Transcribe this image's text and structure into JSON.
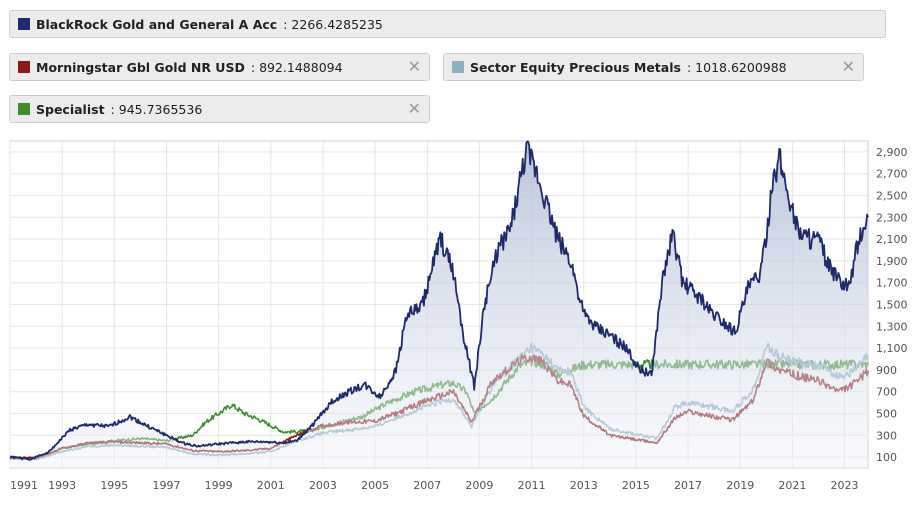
{
  "legend": [
    {
      "name": "BlackRock Gold and General A Acc",
      "value": "2266.4285235",
      "color": "#1f2a6b",
      "closable": false
    },
    {
      "name": "Morningstar Gbl Gold NR USD",
      "value": "892.1488094",
      "color": "#8b1a1a",
      "closable": true
    },
    {
      "name": "Sector Equity Precious Metals",
      "value": "1018.6200988",
      "color": "#8fb0c0",
      "closable": true
    },
    {
      "name": "Specialist",
      "value": "945.7365536",
      "color": "#3f8f2a",
      "closable": true
    }
  ],
  "close_glyph": "✕",
  "chart_data": {
    "type": "line",
    "x_ticks": [
      "1991",
      "1993",
      "1995",
      "1997",
      "1999",
      "2001",
      "2003",
      "2005",
      "2007",
      "2009",
      "2011",
      "2013",
      "2015",
      "2017",
      "2019",
      "2021",
      "2023"
    ],
    "y_ticks": [
      "100",
      "300",
      "500",
      "700",
      "900",
      "1,100",
      "1,300",
      "1,500",
      "1,700",
      "1,900",
      "2,100",
      "2,300",
      "2,500",
      "2,700",
      "2,900"
    ],
    "xlim": [
      1991.0,
      2023.9
    ],
    "ylim": [
      0,
      3000
    ],
    "grid": true,
    "series": [
      {
        "name": "Specialist",
        "color": "#3f8f2a",
        "x": [
          1991.0,
          1992.0,
          1993.0,
          1994.0,
          1995.0,
          1996.0,
          1997.0,
          1998.0,
          1998.5,
          1999.5,
          2000.0,
          2000.5,
          2001.5,
          2002.5,
          2003.5,
          2004.5,
          2005.5,
          2006.5,
          2007.5,
          2008.0,
          2008.5,
          2008.8,
          2009.5,
          2010.5,
          2011.0,
          2011.6,
          2012.0,
          2012.5,
          2013.0,
          2013.3,
          2014.0,
          2016.0,
          2018.0,
          2020.0,
          2022.0,
          2023.9
        ],
        "y": [
          100,
          90,
          180,
          220,
          250,
          270,
          250,
          300,
          420,
          580,
          500,
          450,
          330,
          340,
          410,
          470,
          600,
          700,
          760,
          780,
          700,
          500,
          640,
          930,
          980,
          940,
          860,
          900,
          950,
          950,
          950,
          950,
          950,
          950,
          950,
          950
        ]
      },
      {
        "name": "Sector Equity Precious Metals",
        "color": "#8fb0c0",
        "x": [
          1991.0,
          1992.0,
          1993.0,
          1994.0,
          1995.0,
          1996.0,
          1997.0,
          1998.0,
          1999.0,
          2000.0,
          2001.0,
          2002.0,
          2003.0,
          2004.0,
          2005.0,
          2006.0,
          2007.0,
          2008.0,
          2008.7,
          2009.5,
          2010.5,
          2011.0,
          2011.5,
          2012.0,
          2012.5,
          2013.0,
          2014.0,
          2015.0,
          2015.8,
          2016.5,
          2017.0,
          2018.0,
          2018.7,
          2019.5,
          2020.0,
          2020.5,
          2021.0,
          2022.0,
          2022.8,
          2023.3,
          2023.9
        ],
        "y": [
          80,
          80,
          150,
          200,
          210,
          200,
          190,
          130,
          120,
          130,
          150,
          250,
          320,
          350,
          380,
          480,
          570,
          640,
          380,
          760,
          1000,
          1110,
          1030,
          900,
          880,
          560,
          360,
          310,
          270,
          560,
          600,
          560,
          520,
          720,
          1120,
          1020,
          980,
          940,
          840,
          880,
          1030
        ]
      },
      {
        "name": "Morningstar Gbl Gold NR USD",
        "color": "#8b1a1a",
        "x": [
          1991.0,
          1992.0,
          1993.0,
          1994.0,
          1995.0,
          1996.0,
          1997.0,
          1998.0,
          1999.0,
          2000.0,
          2001.0,
          2002.0,
          2003.0,
          2004.0,
          2005.0,
          2006.0,
          2007.0,
          2008.0,
          2008.7,
          2009.5,
          2010.5,
          2011.0,
          2011.5,
          2012.0,
          2012.5,
          2013.0,
          2014.0,
          2015.0,
          2015.8,
          2016.5,
          2017.0,
          2018.0,
          2018.7,
          2019.5,
          2020.0,
          2020.5,
          2021.0,
          2022.0,
          2022.8,
          2023.3,
          2023.9
        ],
        "y": [
          100,
          90,
          180,
          230,
          240,
          230,
          220,
          160,
          150,
          160,
          180,
          300,
          390,
          420,
          430,
          520,
          620,
          700,
          420,
          800,
          980,
          1020,
          960,
          800,
          760,
          480,
          300,
          260,
          230,
          460,
          520,
          470,
          440,
          620,
          980,
          900,
          860,
          800,
          700,
          760,
          890
        ]
      },
      {
        "name": "BlackRock Gold and General A Acc",
        "color": "#1f2a6b",
        "area": true,
        "x": [
          1991.0,
          1991.8,
          1992.5,
          1993.3,
          1994.0,
          1994.8,
          1995.6,
          1996.3,
          1997.0,
          1997.6,
          1998.2,
          1999.0,
          2000.0,
          2000.8,
          2001.5,
          2002.0,
          2002.7,
          2003.3,
          2004.0,
          2004.6,
          2005.2,
          2005.8,
          2006.2,
          2006.8,
          2007.5,
          2008.0,
          2008.4,
          2008.8,
          2009.2,
          2009.7,
          2010.2,
          2010.8,
          2011.2,
          2011.6,
          2012.0,
          2012.5,
          2013.0,
          2013.5,
          2014.0,
          2014.6,
          2015.1,
          2015.6,
          2016.0,
          2016.4,
          2016.8,
          2017.3,
          2017.8,
          2018.3,
          2018.8,
          2019.3,
          2019.8,
          2020.2,
          2020.5,
          2020.8,
          2021.2,
          2021.6,
          2022.0,
          2022.4,
          2022.8,
          2023.2,
          2023.5,
          2023.9
        ],
        "y": [
          100,
          80,
          150,
          350,
          400,
          380,
          470,
          380,
          300,
          230,
          200,
          220,
          240,
          240,
          230,
          250,
          420,
          600,
          700,
          760,
          650,
          900,
          1400,
          1480,
          2100,
          1800,
          1200,
          750,
          1500,
          2000,
          2200,
          2900,
          2700,
          2400,
          2100,
          1900,
          1400,
          1280,
          1220,
          1100,
          920,
          850,
          1700,
          2150,
          1700,
          1600,
          1450,
          1350,
          1250,
          1650,
          1800,
          2500,
          2850,
          2550,
          2200,
          2100,
          2100,
          1850,
          1700,
          1650,
          2050,
          2300
        ]
      }
    ]
  }
}
